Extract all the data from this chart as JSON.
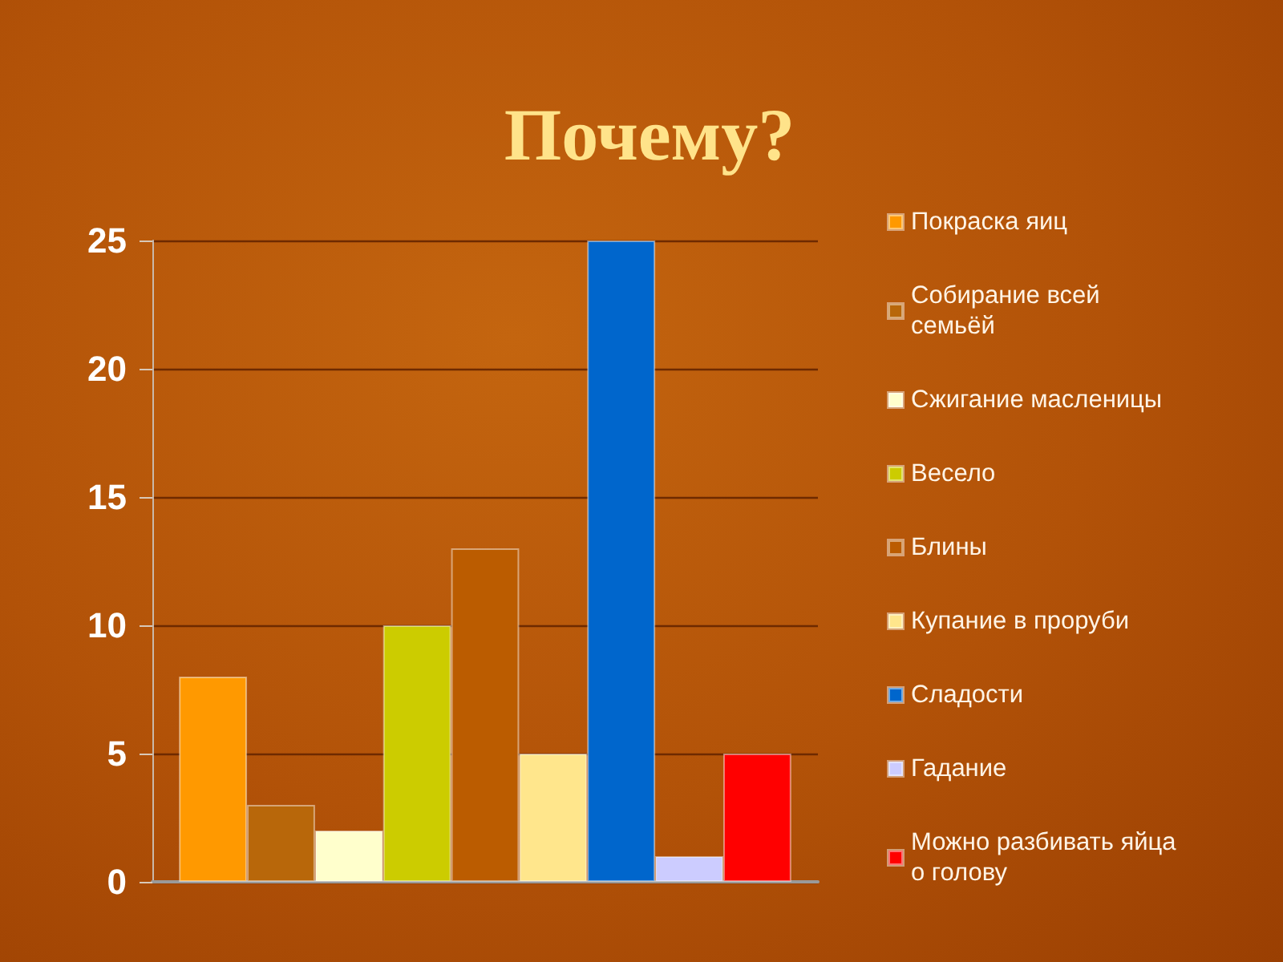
{
  "chart_data": {
    "type": "bar",
    "title": "Почему?",
    "categories": [
      null
    ],
    "series": [
      {
        "name": "Покраска яиц",
        "color": "#ff9900",
        "values": [
          8
        ]
      },
      {
        "name": "Собирание всей семьёй",
        "color": "#b8670a",
        "values": [
          3
        ]
      },
      {
        "name": "Сжигание масленицы",
        "color": "#ffffcc",
        "values": [
          2
        ]
      },
      {
        "name": "Весело",
        "color": "#cccc00",
        "values": [
          10
        ]
      },
      {
        "name": "Блины",
        "color": "#bb5c00",
        "values": [
          13
        ]
      },
      {
        "name": "Купание в проруби",
        "color": "#ffe68c",
        "values": [
          5
        ]
      },
      {
        "name": "Сладости",
        "color": "#0066cc",
        "values": [
          25
        ]
      },
      {
        "name": "Гадание",
        "color": "#ccccff",
        "values": [
          1
        ]
      },
      {
        "name": "Можно разбивать яйца о голову",
        "color": "#ff0000",
        "values": [
          5
        ]
      }
    ],
    "ylim": [
      0,
      25
    ],
    "yticks": [
      0,
      5,
      10,
      15,
      20,
      25
    ],
    "grid": "y",
    "legend": "right",
    "tick_labels": "y"
  }
}
